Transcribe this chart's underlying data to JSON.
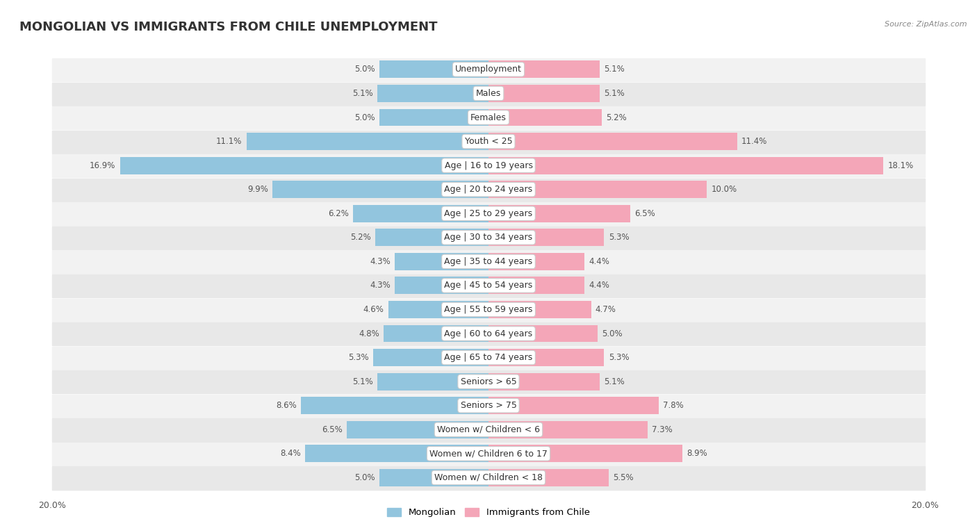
{
  "title": "MONGOLIAN VS IMMIGRANTS FROM CHILE UNEMPLOYMENT",
  "source": "Source: ZipAtlas.com",
  "categories": [
    "Unemployment",
    "Males",
    "Females",
    "Youth < 25",
    "Age | 16 to 19 years",
    "Age | 20 to 24 years",
    "Age | 25 to 29 years",
    "Age | 30 to 34 years",
    "Age | 35 to 44 years",
    "Age | 45 to 54 years",
    "Age | 55 to 59 years",
    "Age | 60 to 64 years",
    "Age | 65 to 74 years",
    "Seniors > 65",
    "Seniors > 75",
    "Women w/ Children < 6",
    "Women w/ Children 6 to 17",
    "Women w/ Children < 18"
  ],
  "mongolian": [
    5.0,
    5.1,
    5.0,
    11.1,
    16.9,
    9.9,
    6.2,
    5.2,
    4.3,
    4.3,
    4.6,
    4.8,
    5.3,
    5.1,
    8.6,
    6.5,
    8.4,
    5.0
  ],
  "chile": [
    5.1,
    5.1,
    5.2,
    11.4,
    18.1,
    10.0,
    6.5,
    5.3,
    4.4,
    4.4,
    4.7,
    5.0,
    5.3,
    5.1,
    7.8,
    7.3,
    8.9,
    5.5
  ],
  "mongolian_color": "#92c5de",
  "chile_color": "#f4a6b8",
  "row_bg_odd": "#f2f2f2",
  "row_bg_even": "#e8e8e8",
  "max_val": 20.0,
  "title_fontsize": 13,
  "label_fontsize": 9,
  "value_fontsize": 8.5,
  "legend_mongolian": "Mongolian",
  "legend_chile": "Immigrants from Chile"
}
